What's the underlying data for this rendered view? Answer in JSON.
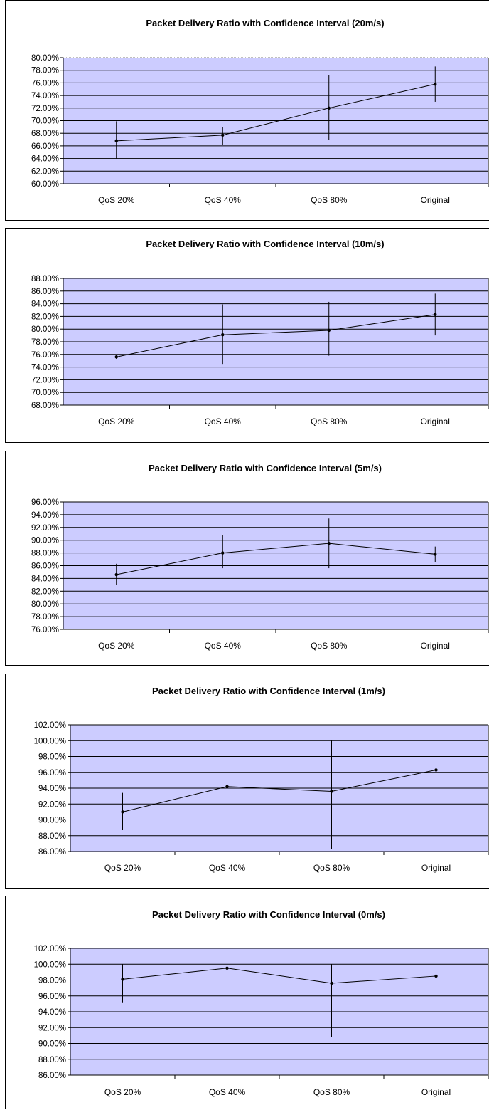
{
  "chart_data": [
    {
      "type": "line",
      "title": "Packet Delivery Ratio with Confidence Interval (20m/s)",
      "categories": [
        "QoS 20%",
        "QoS 40%",
        "QoS 80%",
        "Original"
      ],
      "values": [
        66.8,
        67.7,
        72.0,
        75.8
      ],
      "error_low": [
        64.0,
        66.2,
        67.0,
        73.0
      ],
      "error_high": [
        69.9,
        69.0,
        77.2,
        78.6
      ],
      "ylim": [
        60,
        80
      ],
      "yticks": [
        "80.00%",
        "78.00%",
        "76.00%",
        "74.00%",
        "72.00%",
        "70.00%",
        "68.00%",
        "66.00%",
        "64.00%",
        "62.00%",
        "60.00%"
      ],
      "grid": true
    },
    {
      "type": "line",
      "title": "Packet Delivery Ratio with Confidence Interval (10m/s)",
      "categories": [
        "QoS 20%",
        "QoS 40%",
        "QoS 80%",
        "Original"
      ],
      "values": [
        75.6,
        79.1,
        79.8,
        82.3
      ],
      "error_low": [
        75.3,
        74.5,
        75.8,
        79.0
      ],
      "error_high": [
        75.9,
        83.9,
        84.3,
        85.6
      ],
      "ylim": [
        68,
        88
      ],
      "yticks": [
        "88.00%",
        "86.00%",
        "84.00%",
        "82.00%",
        "80.00%",
        "78.00%",
        "76.00%",
        "74.00%",
        "72.00%",
        "70.00%",
        "68.00%"
      ],
      "grid": true
    },
    {
      "type": "line",
      "title": "Packet Delivery Ratio with Confidence Interval (5m/s)",
      "categories": [
        "QoS 20%",
        "QoS 40%",
        "QoS 80%",
        "Original"
      ],
      "values": [
        84.6,
        88.0,
        89.5,
        87.8
      ],
      "error_low": [
        83.0,
        85.6,
        85.6,
        86.6
      ],
      "error_high": [
        86.3,
        90.8,
        93.4,
        89.0
      ],
      "ylim": [
        76,
        96
      ],
      "yticks": [
        "96.00%",
        "94.00%",
        "92.00%",
        "90.00%",
        "88.00%",
        "86.00%",
        "84.00%",
        "82.00%",
        "80.00%",
        "78.00%",
        "76.00%"
      ],
      "grid": true
    },
    {
      "type": "line",
      "title": "Packet Delivery Ratio with Confidence Interval (1m/s)",
      "categories": [
        "QoS 20%",
        "QoS 40%",
        "QoS 80%",
        "Original"
      ],
      "values": [
        91.0,
        94.2,
        93.6,
        96.3
      ],
      "error_low": [
        88.7,
        92.2,
        86.3,
        95.8
      ],
      "error_high": [
        93.4,
        96.5,
        100.0,
        96.9
      ],
      "ylim": [
        86,
        102
      ],
      "yticks": [
        "102.00%",
        "100.00%",
        "98.00%",
        "96.00%",
        "94.00%",
        "92.00%",
        "90.00%",
        "88.00%",
        "86.00%"
      ],
      "grid": true
    },
    {
      "type": "line",
      "title": "Packet Delivery Ratio with Confidence Interval (0m/s)",
      "categories": [
        "QoS 20%",
        "QoS 40%",
        "QoS 80%",
        "Original"
      ],
      "values": [
        98.1,
        99.5,
        97.6,
        98.5
      ],
      "error_low": [
        95.1,
        99.2,
        90.8,
        97.8
      ],
      "error_high": [
        100.0,
        99.7,
        100.0,
        99.5
      ],
      "ylim": [
        86,
        102
      ],
      "yticks": [
        "102.00%",
        "100.00%",
        "98.00%",
        "96.00%",
        "94.00%",
        "92.00%",
        "90.00%",
        "88.00%",
        "86.00%"
      ],
      "grid": true
    }
  ],
  "colors": {
    "plot_bg": "#ccccff",
    "grid": "#000000",
    "line": "#000000",
    "frame": "#000000"
  }
}
